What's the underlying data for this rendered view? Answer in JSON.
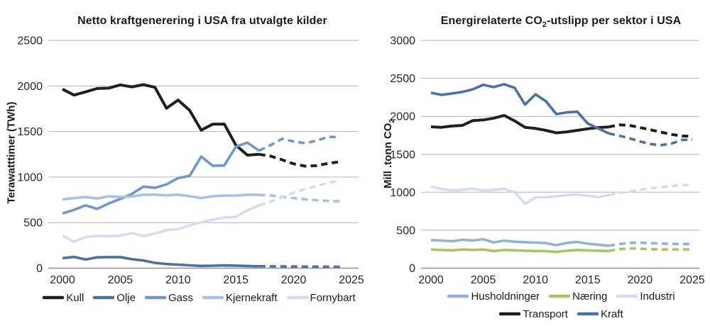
{
  "page": {
    "background": "#ffffff"
  },
  "colors": {
    "grid": "#b3b3b3",
    "axis": "#909090",
    "text": "#262626",
    "black_series": "#1f1f1f",
    "dark_blue": "#4a70a8",
    "medium_blue": "#6f97cf",
    "household_blue": "#8fb2de",
    "light_blue": "#a5c2e6",
    "pale_blue": "#d3ddf1",
    "green": "#a4c763"
  },
  "chart_data": [
    {
      "type": "line",
      "title": "Netto kraftgenerering i USA fra utvalgte kilder",
      "title_parts": [
        {
          "text": "Netto kraftgenerering i USA fra utvalgte kilder"
        }
      ],
      "ylabel": "Terawatttimer (TWh)",
      "ylabel_parts": [
        {
          "text": "Terawatttimer (TWh)"
        }
      ],
      "xlabel": "",
      "xlim": [
        2000,
        2025
      ],
      "ylim": [
        0,
        2500
      ],
      "x_ticks": [
        2000,
        2005,
        2010,
        2015,
        2020,
        2025
      ],
      "y_ticks": [
        0,
        500,
        1000,
        1500,
        2000,
        2500
      ],
      "grid": true,
      "legend_position": "bottom",
      "projection_start_year": 2017,
      "x": [
        2000,
        2001,
        2002,
        2003,
        2004,
        2005,
        2006,
        2007,
        2008,
        2009,
        2010,
        2011,
        2012,
        2013,
        2014,
        2015,
        2016,
        2017,
        2018,
        2019,
        2020,
        2021,
        2022,
        2023,
        2024
      ],
      "series": [
        {
          "name": "Kull",
          "color": "#1f1f1f",
          "width": 4,
          "values": [
            1965,
            1900,
            1935,
            1972,
            1976,
            2012,
            1990,
            2014,
            1985,
            1755,
            1845,
            1732,
            1515,
            1580,
            1582,
            1350,
            1240,
            1250,
            1230,
            1190,
            1145,
            1120,
            1125,
            1150,
            1168
          ]
        },
        {
          "name": "Olje",
          "color": "#4a70a8",
          "width": 3.6,
          "values": [
            110,
            124,
            95,
            119,
            121,
            122,
            99,
            84,
            58,
            45,
            39,
            31,
            25,
            27,
            30,
            28,
            24,
            21,
            20,
            19,
            18,
            17,
            16,
            16,
            15
          ]
        },
        {
          "name": "Gass",
          "color": "#6f97cf",
          "width": 3.6,
          "values": [
            600,
            640,
            690,
            650,
            710,
            760,
            815,
            895,
            882,
            920,
            988,
            1013,
            1225,
            1124,
            1127,
            1333,
            1378,
            1290,
            1350,
            1420,
            1390,
            1372,
            1400,
            1442,
            1438
          ]
        },
        {
          "name": "Kjernekraft",
          "color": "#a5c2e6",
          "width": 3.6,
          "values": [
            754,
            769,
            780,
            764,
            788,
            782,
            787,
            806,
            806,
            799,
            807,
            790,
            769,
            789,
            797,
            797,
            806,
            804,
            798,
            782,
            768,
            756,
            745,
            738,
            735
          ]
        },
        {
          "name": "Fornybart",
          "color": "#d3ddf1",
          "width": 3.6,
          "values": [
            356,
            290,
            342,
            355,
            351,
            357,
            385,
            352,
            380,
            417,
            430,
            470,
            505,
            532,
            555,
            563,
            635,
            688,
            730,
            778,
            828,
            868,
            902,
            938,
            960
          ]
        }
      ],
      "legend_rows": [
        [
          "Kull",
          "Olje",
          "Gass",
          "Kjernekraft",
          "Fornybart"
        ]
      ]
    },
    {
      "type": "line",
      "title": "Energirelaterte CO2-utslipp per sektor i USA",
      "title_parts": [
        {
          "text": "Energirelaterte CO"
        },
        {
          "text": "2",
          "sub": true
        },
        {
          "text": "-utslipp per sektor i USA"
        }
      ],
      "ylabel": "Mill .tonn CO2",
      "ylabel_parts": [
        {
          "text": "Mill .tonn CO"
        },
        {
          "text": "2",
          "sub": true
        }
      ],
      "xlabel": "",
      "xlim": [
        2000,
        2025
      ],
      "ylim": [
        0,
        3000
      ],
      "x_ticks": [
        2000,
        2005,
        2010,
        2015,
        2020,
        2025
      ],
      "y_ticks": [
        0,
        500,
        1000,
        1500,
        2000,
        2500,
        3000
      ],
      "grid": true,
      "legend_position": "bottom",
      "projection_start_year": 2017,
      "x": [
        2000,
        2001,
        2002,
        2003,
        2004,
        2005,
        2006,
        2007,
        2008,
        2009,
        2010,
        2011,
        2012,
        2013,
        2014,
        2015,
        2016,
        2017,
        2018,
        2019,
        2020,
        2021,
        2022,
        2023,
        2024,
        2025
      ],
      "series": [
        {
          "name": "Husholdninger",
          "color": "#8fb2de",
          "width": 3.6,
          "values": [
            370,
            364,
            355,
            375,
            365,
            382,
            340,
            362,
            348,
            342,
            336,
            330,
            302,
            332,
            346,
            322,
            310,
            296,
            318,
            332,
            335,
            330,
            325,
            320,
            318,
            318
          ]
        },
        {
          "name": "Næring",
          "color": "#a4c763",
          "width": 3.6,
          "values": [
            245,
            240,
            235,
            246,
            240,
            246,
            226,
            240,
            235,
            230,
            226,
            225,
            214,
            230,
            240,
            234,
            230,
            226,
            250,
            260,
            257,
            250,
            246,
            245,
            246,
            246
          ]
        },
        {
          "name": "Industri",
          "color": "#d3ddf1",
          "width": 3.6,
          "values": [
            1075,
            1042,
            1025,
            1032,
            1048,
            1022,
            1030,
            1045,
            1002,
            845,
            930,
            935,
            945,
            962,
            970,
            955,
            935,
            965,
            990,
            1012,
            1032,
            1052,
            1068,
            1082,
            1092,
            1098
          ]
        },
        {
          "name": "Transport",
          "color": "#1f1f1f",
          "width": 4,
          "values": [
            1862,
            1855,
            1872,
            1880,
            1944,
            1952,
            1975,
            2012,
            1940,
            1855,
            1840,
            1815,
            1782,
            1795,
            1815,
            1835,
            1852,
            1860,
            1888,
            1880,
            1852,
            1822,
            1792,
            1762,
            1740,
            1738
          ]
        },
        {
          "name": "Kraft",
          "color": "#4a70a8",
          "width": 3.6,
          "values": [
            2310,
            2282,
            2300,
            2322,
            2355,
            2415,
            2385,
            2422,
            2375,
            2155,
            2290,
            2198,
            2030,
            2052,
            2060,
            1905,
            1840,
            1775,
            1745,
            1710,
            1668,
            1635,
            1620,
            1640,
            1688,
            1695
          ]
        }
      ],
      "legend_rows": [
        [
          "Husholdninger",
          "Næring",
          "Industri"
        ],
        [
          "Transport",
          "Kraft"
        ]
      ]
    }
  ]
}
